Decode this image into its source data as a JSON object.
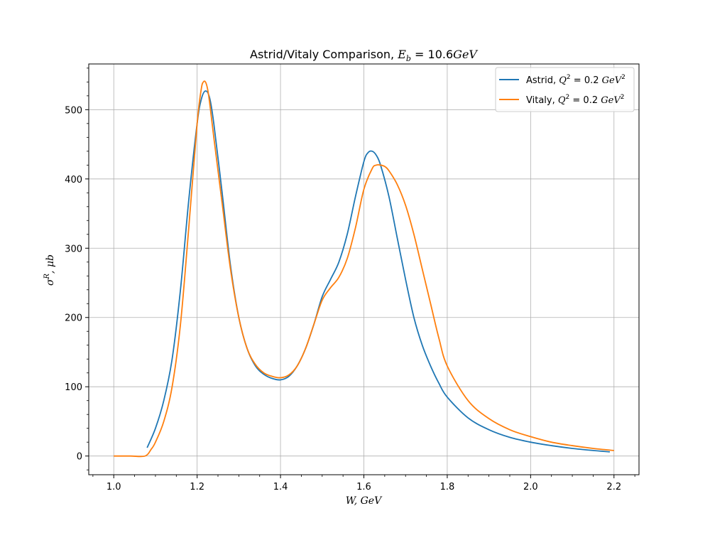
{
  "chart_data": {
    "type": "line",
    "title": "Astrid/Vitaly Comparison, E_b = 10.6GeV",
    "xlabel": "W, GeV",
    "ylabel": "σ^R, μb",
    "xlim": [
      0.94,
      2.26
    ],
    "ylim": [
      -27,
      566
    ],
    "xticks": [
      1.0,
      1.2,
      1.4,
      1.6,
      1.8,
      2.0,
      2.2
    ],
    "xtick_labels": [
      "1.0",
      "1.2",
      "1.4",
      "1.6",
      "1.8",
      "2.0",
      "2.2"
    ],
    "yticks": [
      0,
      100,
      200,
      300,
      400,
      500
    ],
    "ytick_labels": [
      "0",
      "100",
      "200",
      "300",
      "400",
      "500"
    ],
    "grid": true,
    "legend_position": "upper right",
    "series": [
      {
        "name": "Astrid, Q^2 = 0.2 GeV^2",
        "color": "#1f77b4",
        "x": [
          1.08,
          1.1,
          1.12,
          1.14,
          1.16,
          1.18,
          1.2,
          1.21,
          1.22,
          1.23,
          1.24,
          1.26,
          1.28,
          1.3,
          1.32,
          1.34,
          1.36,
          1.38,
          1.4,
          1.42,
          1.44,
          1.46,
          1.48,
          1.5,
          1.52,
          1.54,
          1.56,
          1.58,
          1.6,
          1.61,
          1.62,
          1.63,
          1.64,
          1.66,
          1.68,
          1.7,
          1.72,
          1.74,
          1.76,
          1.78,
          1.8,
          1.85,
          1.9,
          1.95,
          2.0,
          2.05,
          2.1,
          2.15,
          2.19
        ],
        "y": [
          12,
          40,
          80,
          140,
          240,
          370,
          480,
          515,
          527,
          517,
          480,
          380,
          275,
          200,
          155,
          130,
          118,
          112,
          110,
          115,
          130,
          155,
          190,
          230,
          255,
          280,
          320,
          375,
          425,
          438,
          440,
          434,
          420,
          375,
          315,
          255,
          200,
          160,
          130,
          105,
          85,
          55,
          38,
          27,
          20,
          15,
          11,
          8,
          6
        ]
      },
      {
        "name": "Vitaly, Q^2 = 0.2 GeV^2",
        "color": "#ff7f0e",
        "x": [
          1.0,
          1.04,
          1.075,
          1.09,
          1.1,
          1.12,
          1.14,
          1.16,
          1.18,
          1.2,
          1.21,
          1.215,
          1.22,
          1.225,
          1.23,
          1.24,
          1.26,
          1.28,
          1.3,
          1.32,
          1.34,
          1.36,
          1.38,
          1.4,
          1.42,
          1.44,
          1.46,
          1.48,
          1.5,
          1.52,
          1.54,
          1.56,
          1.58,
          1.6,
          1.62,
          1.63,
          1.64,
          1.65,
          1.66,
          1.68,
          1.7,
          1.72,
          1.74,
          1.76,
          1.78,
          1.8,
          1.85,
          1.9,
          1.95,
          2.0,
          2.05,
          2.1,
          2.15,
          2.2
        ],
        "y": [
          0,
          0,
          0,
          10,
          20,
          50,
          100,
          190,
          330,
          480,
          530,
          540,
          540,
          530,
          510,
          460,
          365,
          270,
          200,
          155,
          132,
          120,
          115,
          113,
          117,
          130,
          155,
          190,
          225,
          243,
          258,
          285,
          330,
          385,
          415,
          420,
          420,
          418,
          412,
          392,
          362,
          320,
          270,
          220,
          170,
          130,
          80,
          54,
          38,
          28,
          20,
          15,
          11,
          8
        ]
      }
    ]
  }
}
